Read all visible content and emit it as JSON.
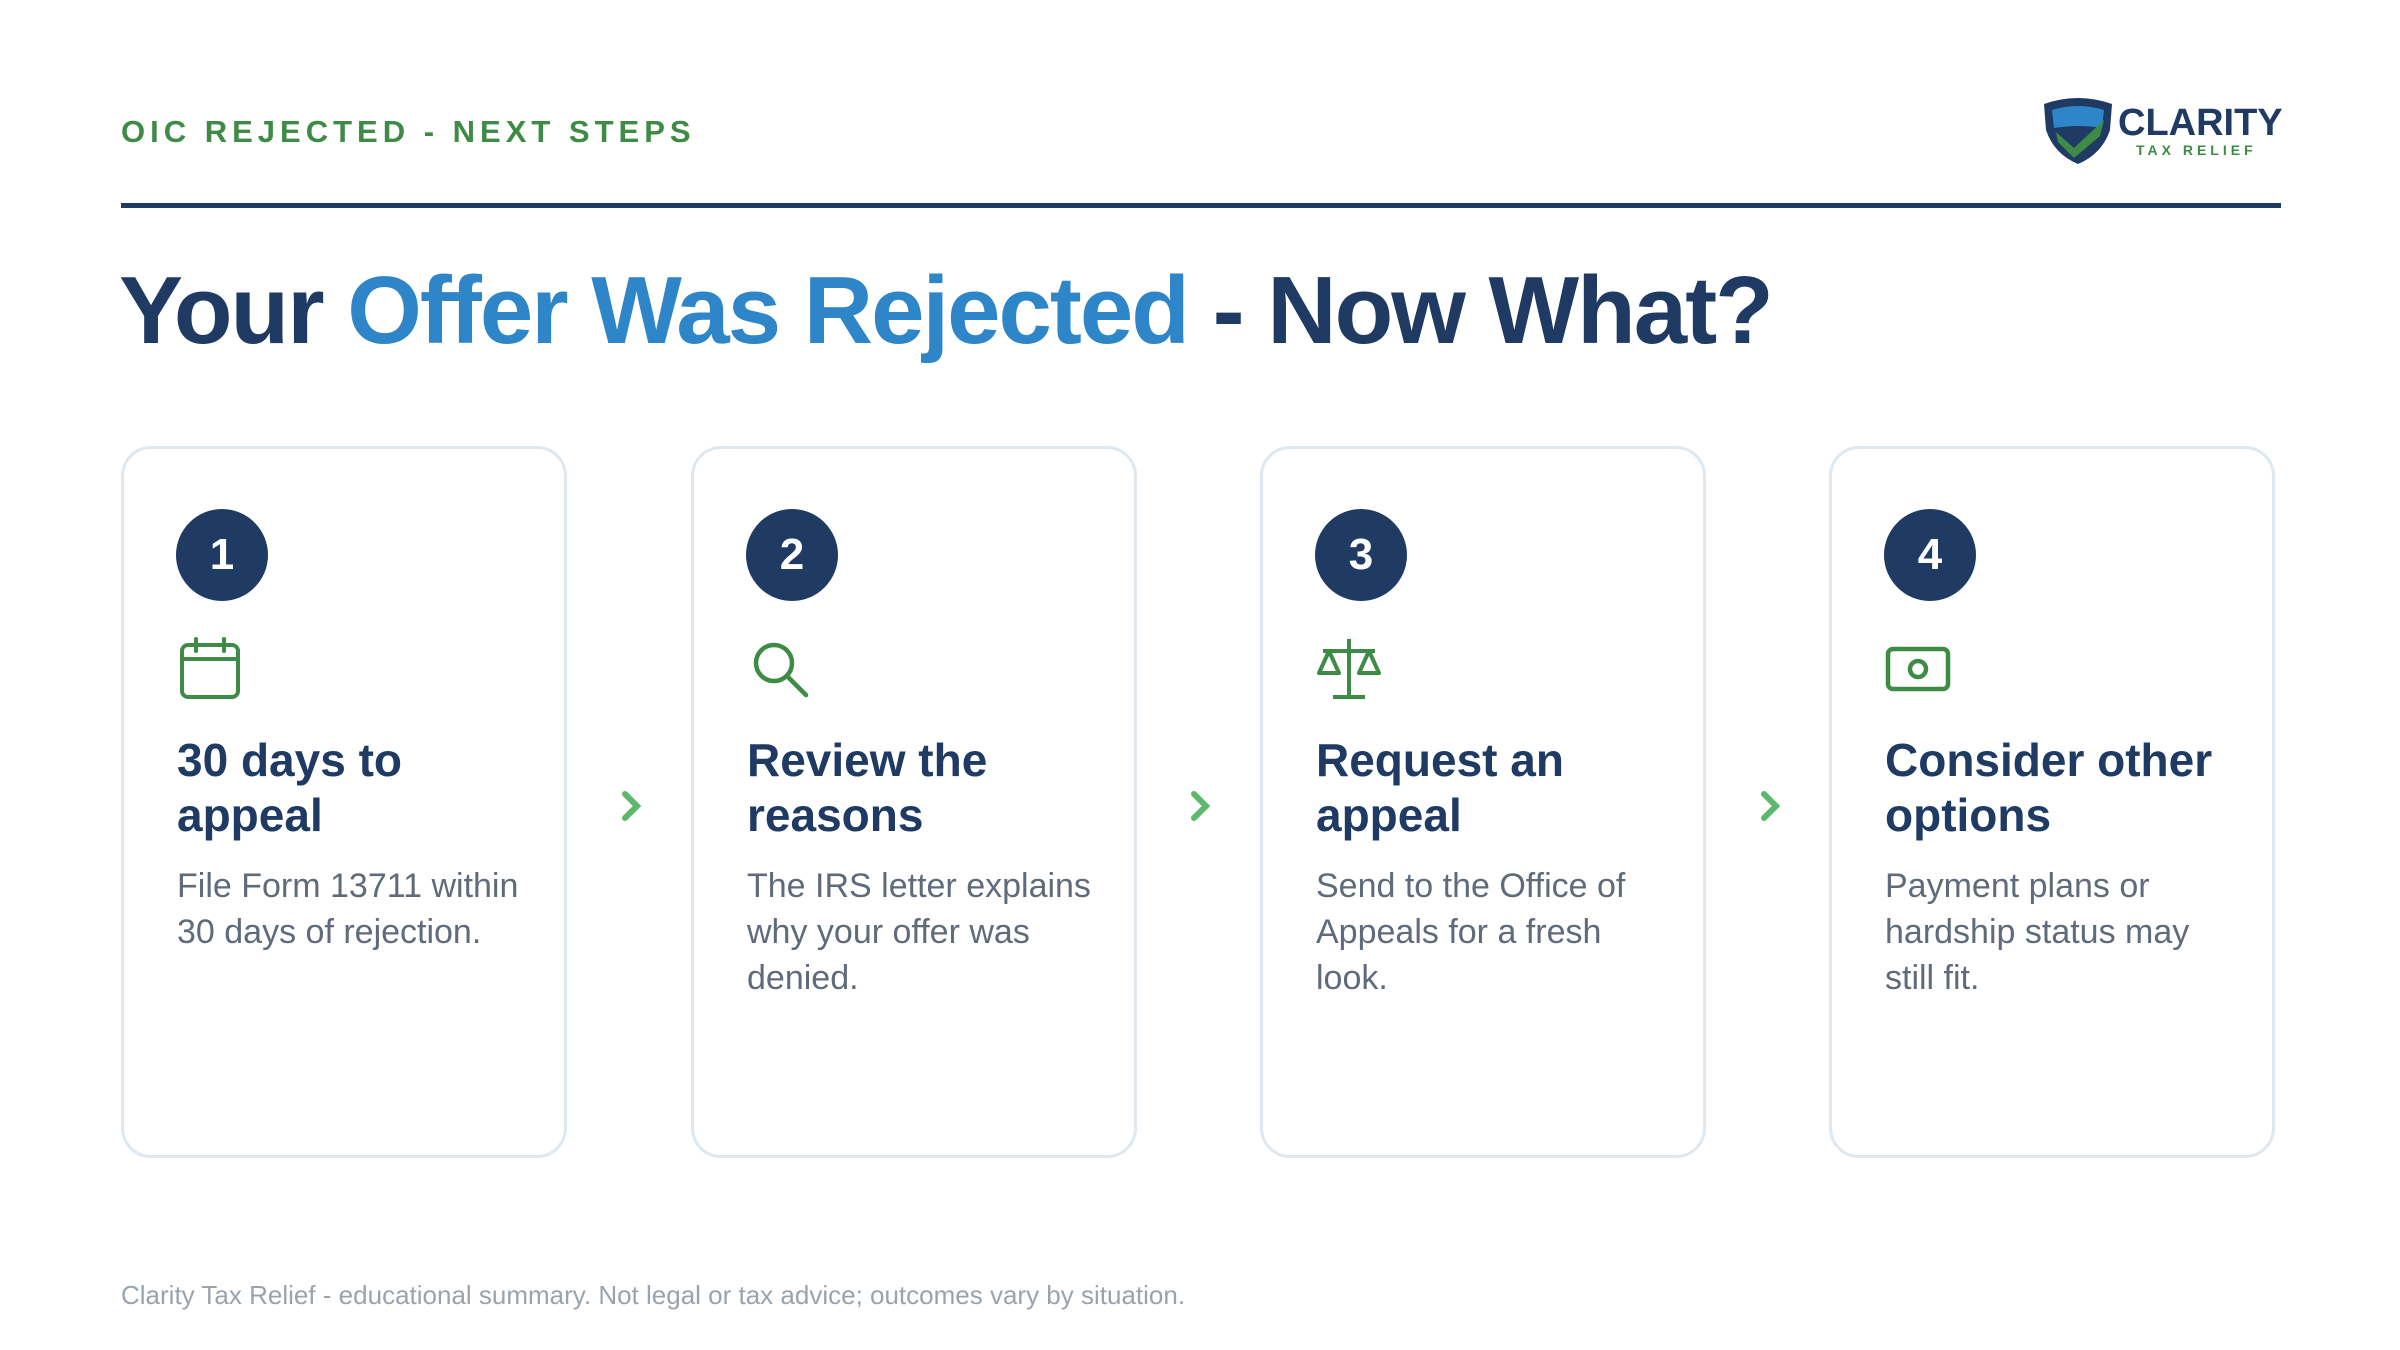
{
  "header": {
    "eyebrow": "OIC REJECTED - NEXT STEPS"
  },
  "logo": {
    "name": "CLARITY",
    "tagline": "TAX RELIEF"
  },
  "title": {
    "lead": "Your",
    "highlight": "Offer Was Rejected",
    "tail": "- Now What?"
  },
  "steps": [
    {
      "number": 1,
      "heading": "30 days to appeal",
      "body": "File Form 13711 within 30 days of rejection."
    },
    {
      "number": 2,
      "heading": "Review the reasons",
      "body": "The IRS letter explains why your offer was denied."
    },
    {
      "number": 3,
      "heading": "Request an appeal",
      "body": "Send to the Office of Appeals for a fresh look."
    },
    {
      "number": 4,
      "heading": "Consider other options",
      "body": "Payment plans or hardship status may still fit."
    }
  ],
  "footer": "Clarity Tax Relief - educational summary. Not legal or tax advice; outcomes vary by situation."
}
